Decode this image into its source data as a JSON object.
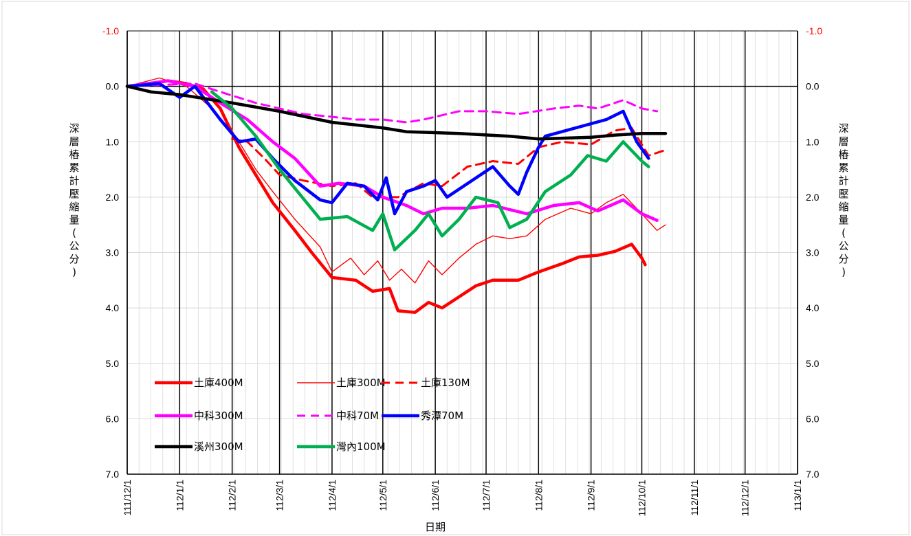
{
  "chart_data": {
    "type": "line",
    "xlabel": "日期",
    "ylabel_left": "深層樁累計壓縮量(公分)",
    "ylabel_right": "深層樁累計壓縮量(公分)",
    "y_inverted": true,
    "ylim": [
      -1.0,
      7.0
    ],
    "y_ticks": [
      "-1.0",
      "0.0",
      "1.0",
      "2.0",
      "3.0",
      "4.0",
      "5.0",
      "6.0",
      "7.0"
    ],
    "x_ticks": [
      "111/12/1",
      "112/1/1",
      "112/2/1",
      "112/3/1",
      "112/4/1",
      "112/5/1",
      "112/6/1",
      "112/7/1",
      "112/8/1",
      "112/9/1",
      "112/10/1",
      "112/11/1",
      "112/12/1",
      "113/1/1"
    ],
    "xlim": [
      "2022-12-01",
      "2024-01-01"
    ],
    "grid": true,
    "legend_position": "bottom-left",
    "series": [
      {
        "name": "土庫400M",
        "color": "#ff0000",
        "style": "thick",
        "points": [
          [
            "2022-12-01",
            0.0
          ],
          [
            "2022-12-15",
            -0.05
          ],
          [
            "2022-12-25",
            -0.1
          ],
          [
            "2023-01-05",
            -0.05
          ],
          [
            "2023-01-15",
            0.05
          ],
          [
            "2023-01-25",
            0.4
          ],
          [
            "2023-02-05",
            1.1
          ],
          [
            "2023-02-15",
            1.6
          ],
          [
            "2023-02-25",
            2.1
          ],
          [
            "2023-03-10",
            2.6
          ],
          [
            "2023-03-20",
            3.0
          ],
          [
            "2023-04-01",
            3.45
          ],
          [
            "2023-04-15",
            3.5
          ],
          [
            "2023-04-25",
            3.7
          ],
          [
            "2023-05-05",
            3.65
          ],
          [
            "2023-05-10",
            4.05
          ],
          [
            "2023-05-20",
            4.08
          ],
          [
            "2023-05-28",
            3.9
          ],
          [
            "2023-06-05",
            4.0
          ],
          [
            "2023-06-15",
            3.8
          ],
          [
            "2023-06-25",
            3.6
          ],
          [
            "2023-07-05",
            3.5
          ],
          [
            "2023-07-20",
            3.5
          ],
          [
            "2023-08-01",
            3.35
          ],
          [
            "2023-08-15",
            3.2
          ],
          [
            "2023-08-25",
            3.08
          ],
          [
            "2023-09-05",
            3.05
          ],
          [
            "2023-09-15",
            2.98
          ],
          [
            "2023-09-25",
            2.85
          ],
          [
            "2023-10-01",
            3.1
          ],
          [
            "2023-10-03",
            3.22
          ]
        ]
      },
      {
        "name": "土庫300M",
        "color": "#ff0000",
        "style": "thin",
        "points": [
          [
            "2022-12-01",
            0.0
          ],
          [
            "2022-12-20",
            -0.15
          ],
          [
            "2023-01-05",
            0.0
          ],
          [
            "2023-01-20",
            0.4
          ],
          [
            "2023-02-05",
            1.0
          ],
          [
            "2023-02-15",
            1.5
          ],
          [
            "2023-02-25",
            1.9
          ],
          [
            "2023-03-10",
            2.4
          ],
          [
            "2023-03-25",
            2.9
          ],
          [
            "2023-04-01",
            3.35
          ],
          [
            "2023-04-12",
            3.1
          ],
          [
            "2023-04-20",
            3.4
          ],
          [
            "2023-04-28",
            3.15
          ],
          [
            "2023-05-05",
            3.5
          ],
          [
            "2023-05-12",
            3.3
          ],
          [
            "2023-05-20",
            3.55
          ],
          [
            "2023-05-28",
            3.15
          ],
          [
            "2023-06-05",
            3.4
          ],
          [
            "2023-06-15",
            3.1
          ],
          [
            "2023-06-25",
            2.85
          ],
          [
            "2023-07-05",
            2.7
          ],
          [
            "2023-07-15",
            2.75
          ],
          [
            "2023-07-25",
            2.7
          ],
          [
            "2023-08-05",
            2.4
          ],
          [
            "2023-08-20",
            2.2
          ],
          [
            "2023-09-01",
            2.3
          ],
          [
            "2023-09-10",
            2.1
          ],
          [
            "2023-09-20",
            1.95
          ],
          [
            "2023-10-01",
            2.3
          ],
          [
            "2023-10-10",
            2.6
          ],
          [
            "2023-10-15",
            2.5
          ]
        ]
      },
      {
        "name": "土庫130M",
        "color": "#ff0000",
        "style": "dashed",
        "points": [
          [
            "2023-02-01",
            0.95
          ],
          [
            "2023-02-10",
            1.0
          ],
          [
            "2023-02-20",
            1.3
          ],
          [
            "2023-03-01",
            1.6
          ],
          [
            "2023-03-15",
            1.7
          ],
          [
            "2023-04-01",
            1.8
          ],
          [
            "2023-04-15",
            1.75
          ],
          [
            "2023-04-25",
            2.0
          ],
          [
            "2023-05-10",
            2.0
          ],
          [
            "2023-05-25",
            1.75
          ],
          [
            "2023-06-05",
            1.8
          ],
          [
            "2023-06-20",
            1.45
          ],
          [
            "2023-07-05",
            1.35
          ],
          [
            "2023-07-20",
            1.4
          ],
          [
            "2023-08-01",
            1.1
          ],
          [
            "2023-08-15",
            1.0
          ],
          [
            "2023-09-01",
            1.05
          ],
          [
            "2023-09-15",
            0.8
          ],
          [
            "2023-09-25",
            0.75
          ],
          [
            "2023-10-05",
            1.25
          ],
          [
            "2023-10-15",
            1.15
          ]
        ]
      },
      {
        "name": "中科300M",
        "color": "#ff00ff",
        "style": "thick",
        "points": [
          [
            "2022-12-01",
            0.0
          ],
          [
            "2022-12-25",
            -0.1
          ],
          [
            "2023-01-10",
            0.0
          ],
          [
            "2023-01-25",
            0.3
          ],
          [
            "2023-02-10",
            0.6
          ],
          [
            "2023-02-25",
            1.0
          ],
          [
            "2023-03-10",
            1.3
          ],
          [
            "2023-03-25",
            1.8
          ],
          [
            "2023-04-05",
            1.75
          ],
          [
            "2023-04-20",
            1.8
          ],
          [
            "2023-05-01",
            2.0
          ],
          [
            "2023-05-15",
            2.15
          ],
          [
            "2023-05-25",
            2.3
          ],
          [
            "2023-06-05",
            2.2
          ],
          [
            "2023-06-20",
            2.2
          ],
          [
            "2023-07-05",
            2.15
          ],
          [
            "2023-07-25",
            2.3
          ],
          [
            "2023-08-10",
            2.15
          ],
          [
            "2023-08-25",
            2.1
          ],
          [
            "2023-09-05",
            2.25
          ],
          [
            "2023-09-20",
            2.05
          ],
          [
            "2023-10-01",
            2.3
          ],
          [
            "2023-10-10",
            2.42
          ]
        ]
      },
      {
        "name": "中科70M",
        "color": "#ff00ff",
        "style": "dashed",
        "points": [
          [
            "2022-12-01",
            0.0
          ],
          [
            "2023-01-10",
            -0.05
          ],
          [
            "2023-01-25",
            0.1
          ],
          [
            "2023-02-15",
            0.3
          ],
          [
            "2023-03-01",
            0.4
          ],
          [
            "2023-03-15",
            0.5
          ],
          [
            "2023-04-01",
            0.55
          ],
          [
            "2023-04-15",
            0.6
          ],
          [
            "2023-05-01",
            0.6
          ],
          [
            "2023-05-15",
            0.65
          ],
          [
            "2023-05-25",
            0.6
          ],
          [
            "2023-06-15",
            0.45
          ],
          [
            "2023-07-01",
            0.45
          ],
          [
            "2023-07-20",
            0.5
          ],
          [
            "2023-08-10",
            0.4
          ],
          [
            "2023-08-25",
            0.35
          ],
          [
            "2023-09-05",
            0.4
          ],
          [
            "2023-09-20",
            0.25
          ],
          [
            "2023-10-01",
            0.4
          ],
          [
            "2023-10-10",
            0.45
          ]
        ]
      },
      {
        "name": "秀潭70M",
        "color": "#0000ff",
        "style": "thick",
        "points": [
          [
            "2022-12-01",
            0.0
          ],
          [
            "2022-12-20",
            -0.05
          ],
          [
            "2023-01-01",
            0.2
          ],
          [
            "2023-01-10",
            0.0
          ],
          [
            "2023-01-25",
            0.6
          ],
          [
            "2023-02-05",
            1.0
          ],
          [
            "2023-02-15",
            0.95
          ],
          [
            "2023-02-25",
            1.3
          ],
          [
            "2023-03-10",
            1.7
          ],
          [
            "2023-03-25",
            2.05
          ],
          [
            "2023-04-01",
            2.1
          ],
          [
            "2023-04-10",
            1.75
          ],
          [
            "2023-04-20",
            1.8
          ],
          [
            "2023-04-28",
            2.05
          ],
          [
            "2023-05-03",
            1.65
          ],
          [
            "2023-05-08",
            2.3
          ],
          [
            "2023-05-15",
            1.9
          ],
          [
            "2023-05-25",
            1.8
          ],
          [
            "2023-06-01",
            1.7
          ],
          [
            "2023-06-08",
            2.0
          ],
          [
            "2023-07-05",
            1.45
          ],
          [
            "2023-07-15",
            1.8
          ],
          [
            "2023-07-20",
            1.95
          ],
          [
            "2023-07-25",
            1.55
          ],
          [
            "2023-08-01",
            1.1
          ],
          [
            "2023-08-05",
            0.9
          ],
          [
            "2023-09-10",
            0.6
          ],
          [
            "2023-09-20",
            0.45
          ],
          [
            "2023-09-28",
            1.0
          ],
          [
            "2023-10-05",
            1.3
          ]
        ]
      },
      {
        "name": "溪州300M",
        "color": "#000000",
        "style": "thick",
        "points": [
          [
            "2022-12-01",
            0.0
          ],
          [
            "2022-12-15",
            0.1
          ],
          [
            "2023-01-01",
            0.15
          ],
          [
            "2023-02-01",
            0.3
          ],
          [
            "2023-03-01",
            0.45
          ],
          [
            "2023-04-01",
            0.65
          ],
          [
            "2023-05-01",
            0.75
          ],
          [
            "2023-05-15",
            0.82
          ],
          [
            "2023-06-15",
            0.85
          ],
          [
            "2023-07-15",
            0.9
          ],
          [
            "2023-08-01",
            0.95
          ],
          [
            "2023-09-01",
            0.92
          ],
          [
            "2023-09-15",
            0.88
          ],
          [
            "2023-10-01",
            0.85
          ],
          [
            "2023-10-15",
            0.85
          ]
        ]
      },
      {
        "name": "灣內100M",
        "color": "#00b050",
        "style": "thick",
        "points": [
          [
            "2023-01-20",
            0.1
          ],
          [
            "2023-02-01",
            0.4
          ],
          [
            "2023-02-15",
            0.9
          ],
          [
            "2023-03-01",
            1.5
          ],
          [
            "2023-03-25",
            2.4
          ],
          [
            "2023-04-10",
            2.35
          ],
          [
            "2023-04-25",
            2.6
          ],
          [
            "2023-05-01",
            2.3
          ],
          [
            "2023-05-08",
            2.95
          ],
          [
            "2023-05-20",
            2.6
          ],
          [
            "2023-05-28",
            2.3
          ],
          [
            "2023-06-05",
            2.7
          ],
          [
            "2023-06-15",
            2.4
          ],
          [
            "2023-06-25",
            2.0
          ],
          [
            "2023-07-08",
            2.1
          ],
          [
            "2023-07-15",
            2.55
          ],
          [
            "2023-07-25",
            2.4
          ],
          [
            "2023-08-05",
            1.9
          ],
          [
            "2023-08-20",
            1.6
          ],
          [
            "2023-08-30",
            1.25
          ],
          [
            "2023-09-10",
            1.35
          ],
          [
            "2023-09-20",
            1.0
          ],
          [
            "2023-10-01",
            1.35
          ],
          [
            "2023-10-05",
            1.45
          ]
        ]
      }
    ]
  }
}
